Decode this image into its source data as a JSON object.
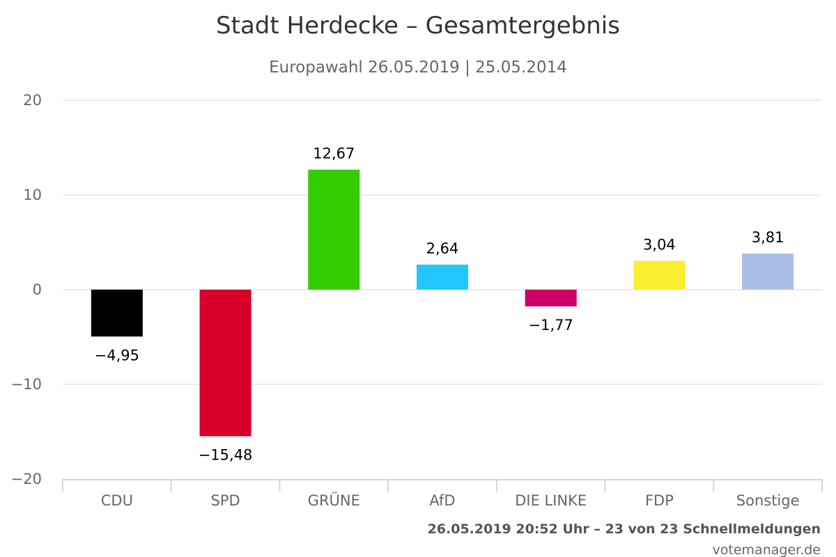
{
  "chart_data": {
    "type": "bar",
    "title": "Stadt Herdecke – Gesamtergebnis",
    "subtitle": "Europawahl 26.05.2019 | 25.05.2014",
    "categories": [
      "CDU",
      "SPD",
      "GRÜNE",
      "AfD",
      "DIE LINKE",
      "FDP",
      "Sonstige"
    ],
    "values": [
      -4.95,
      -15.48,
      12.67,
      2.64,
      -1.77,
      3.04,
      3.81
    ],
    "value_labels": [
      "−4,95",
      "−15,48",
      "12,67",
      "2,64",
      "−1,77",
      "3,04",
      "3,81"
    ],
    "colors": [
      "#000000",
      "#d7002a",
      "#33cc00",
      "#22c5fd",
      "#cc0066",
      "#fcee30",
      "#aabfe6"
    ],
    "ylim": [
      -20,
      20
    ],
    "yticks": [
      20,
      10,
      0,
      -10,
      -20
    ],
    "ytick_labels": [
      "20",
      "10",
      "0",
      "−10",
      "−20"
    ],
    "grid": true,
    "legend": "none",
    "xlabel": "",
    "ylabel": ""
  },
  "footer": {
    "status": "26.05.2019 20:52 Uhr – 23 von 23 Schnellmeldungen",
    "source": "votemanager.de"
  }
}
